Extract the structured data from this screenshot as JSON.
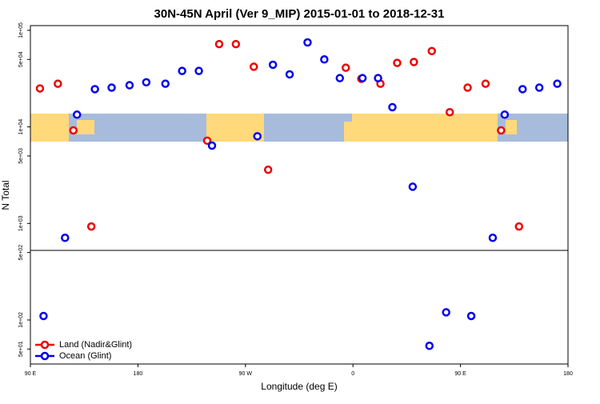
{
  "chart_data": {
    "type": "scatter",
    "title": "30N-45N April (Ver 9_MIP)   2015-01-01 to 2018-12-31",
    "x_label": "Longitude (deg E)",
    "y_label": "N Total",
    "xlim": [
      90,
      540
    ],
    "xticks": [
      {
        "value": 90,
        "label": "90 E"
      },
      {
        "value": 180,
        "label": "180"
      },
      {
        "value": 270,
        "label": "90 W"
      },
      {
        "value": 360,
        "label": "0"
      },
      {
        "value": 450,
        "label": "90 E"
      },
      {
        "value": 540,
        "label": "180"
      }
    ],
    "ylim": [
      35,
      112000
    ],
    "y_log": true,
    "yticks": [
      {
        "value": 100000,
        "label": "1e+05"
      },
      {
        "value": 50000,
        "label": "5e+04"
      },
      {
        "value": 10000,
        "label": "1e+04"
      },
      {
        "value": 5000,
        "label": "5e+03"
      },
      {
        "value": 1000,
        "label": "1e+03"
      },
      {
        "value": 500,
        "label": "5e+02"
      },
      {
        "value": 100,
        "label": "1e+02"
      },
      {
        "value": 50,
        "label": "5e+01"
      }
    ],
    "legend": "bottomleft",
    "series": [
      {
        "name": "Land (Nadir&Glint)",
        "color": "#ee0000",
        "x": [
          98,
          113,
          126,
          141,
          238,
          248,
          262,
          277,
          289,
          354,
          367,
          383,
          397,
          411,
          426,
          441,
          456,
          471,
          484,
          499
        ],
        "values": [
          25000,
          28000,
          9200,
          930,
          7200,
          72000,
          72000,
          42000,
          3600,
          41000,
          31500,
          28000,
          46000,
          47000,
          61000,
          14200,
          25500,
          28000,
          9200,
          930
        ]
      },
      {
        "name": "Ocean (Glint)",
        "color": "#0000ee",
        "x": [
          101,
          119,
          129,
          144,
          158,
          173,
          187,
          203,
          217,
          231,
          242,
          280,
          293,
          307,
          322,
          336,
          349,
          368,
          381,
          393,
          410,
          424,
          438,
          459,
          477,
          487,
          502,
          516,
          531
        ],
        "values": [
          110,
          710,
          13400,
          24600,
          25500,
          27000,
          29000,
          28000,
          38000,
          38000,
          6400,
          8000,
          44000,
          35000,
          75000,
          50000,
          32000,
          32000,
          32000,
          16000,
          2400,
          54,
          120,
          110,
          710,
          13400,
          24600,
          25500,
          28000
        ]
      }
    ]
  }
}
